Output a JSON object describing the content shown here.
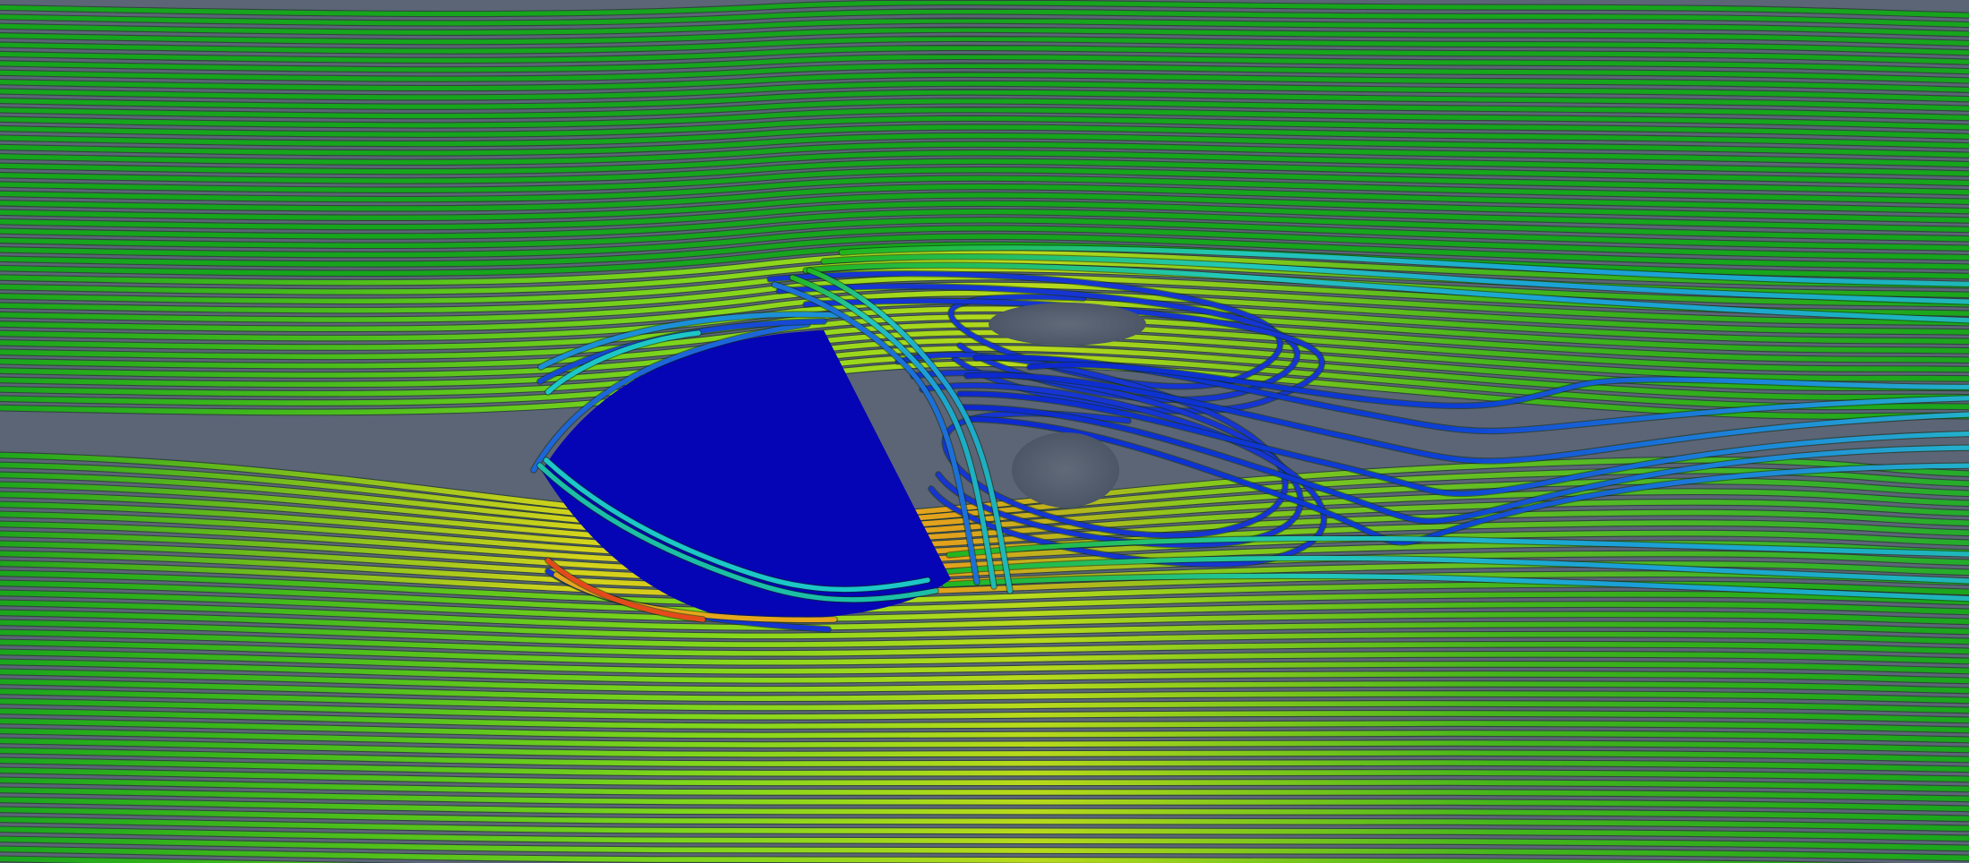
{
  "scene": {
    "kind": "cfd-streamline-visualization",
    "subject": "flow-obstacle-with-wake-vortices",
    "palette": {
      "background": "#5b6576",
      "obstacle": "#0505b5",
      "slow_flow": "#1631d8",
      "cyan_flow": "#1dc7c7",
      "base_flow": "#16a61a",
      "fast_flow": "#b7d81a",
      "peak_flow": "#e44a1a",
      "tube_shadow": "#0f2a11"
    },
    "visible_text": []
  }
}
